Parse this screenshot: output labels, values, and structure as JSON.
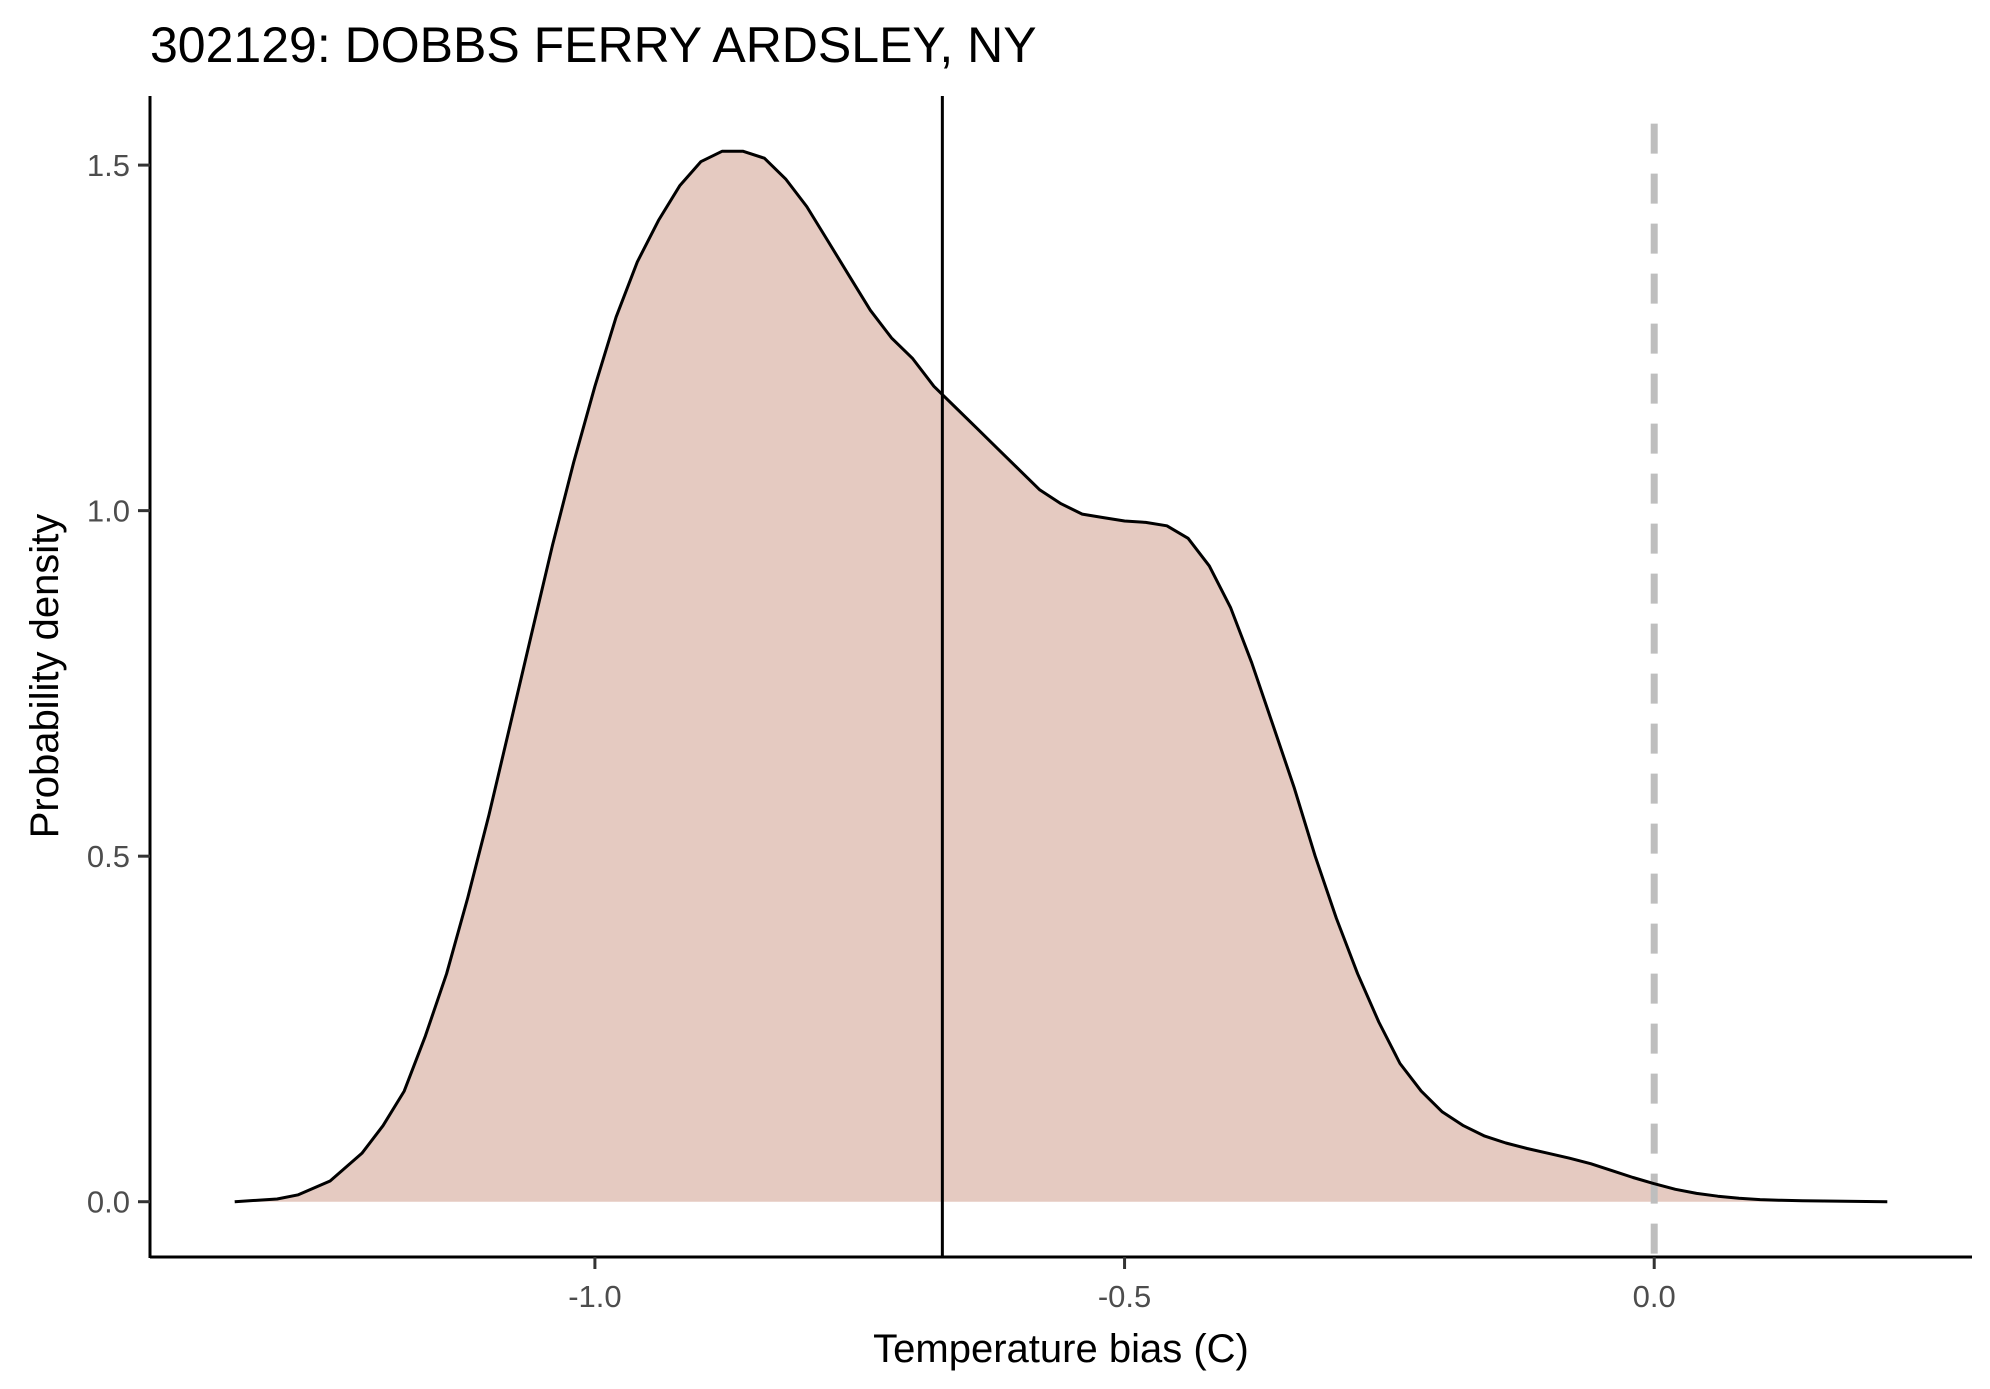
{
  "chart_data": {
    "type": "area",
    "title": "302129: DOBBS FERRY ARDSLEY, NY",
    "xlabel": "Temperature bias (C)",
    "ylabel": "Probability density",
    "xlim": [
      -1.42,
      0.3
    ],
    "ylim": [
      -0.08,
      1.6
    ],
    "x_ticks": [
      -1.0,
      -0.5,
      0.0
    ],
    "x_tick_labels": [
      "-1.0",
      "-0.5",
      "0.0"
    ],
    "y_ticks": [
      0.0,
      0.5,
      1.0,
      1.5
    ],
    "y_tick_labels": [
      "0.0",
      "0.5",
      "1.0",
      "1.5"
    ],
    "grid": false,
    "legend": "none",
    "fill_color": "#e5cac1",
    "line_color": "#000000",
    "reference_lines": [
      {
        "name": "mean",
        "x": -0.672,
        "style": "solid",
        "color": "#000000"
      },
      {
        "name": "zero",
        "x": 0.0,
        "style": "dashed",
        "color": "#bebebe"
      }
    ],
    "density": {
      "x": [
        -1.34,
        -1.3,
        -1.28,
        -1.25,
        -1.22,
        -1.2,
        -1.18,
        -1.16,
        -1.14,
        -1.12,
        -1.1,
        -1.08,
        -1.06,
        -1.04,
        -1.02,
        -1.0,
        -0.98,
        -0.96,
        -0.94,
        -0.92,
        -0.9,
        -0.88,
        -0.86,
        -0.84,
        -0.82,
        -0.8,
        -0.78,
        -0.76,
        -0.74,
        -0.72,
        -0.7,
        -0.68,
        -0.66,
        -0.64,
        -0.62,
        -0.6,
        -0.58,
        -0.56,
        -0.54,
        -0.52,
        -0.5,
        -0.48,
        -0.46,
        -0.44,
        -0.42,
        -0.4,
        -0.38,
        -0.36,
        -0.34,
        -0.32,
        -0.3,
        -0.28,
        -0.26,
        -0.24,
        -0.22,
        -0.2,
        -0.18,
        -0.16,
        -0.14,
        -0.12,
        -0.1,
        -0.08,
        -0.06,
        -0.04,
        -0.02,
        0.0,
        0.02,
        0.04,
        0.06,
        0.08,
        0.1,
        0.12,
        0.14,
        0.16,
        0.18,
        0.22
      ],
      "y": [
        0.0,
        0.004,
        0.01,
        0.03,
        0.07,
        0.11,
        0.16,
        0.24,
        0.33,
        0.44,
        0.56,
        0.69,
        0.82,
        0.95,
        1.07,
        1.18,
        1.28,
        1.36,
        1.42,
        1.47,
        1.505,
        1.52,
        1.52,
        1.51,
        1.48,
        1.44,
        1.39,
        1.34,
        1.29,
        1.25,
        1.22,
        1.18,
        1.15,
        1.12,
        1.09,
        1.06,
        1.03,
        1.01,
        0.995,
        0.99,
        0.985,
        0.983,
        0.978,
        0.96,
        0.92,
        0.86,
        0.78,
        0.69,
        0.6,
        0.5,
        0.41,
        0.33,
        0.26,
        0.2,
        0.16,
        0.13,
        0.11,
        0.095,
        0.085,
        0.077,
        0.07,
        0.063,
        0.055,
        0.045,
        0.035,
        0.026,
        0.018,
        0.012,
        0.008,
        0.005,
        0.003,
        0.002,
        0.0015,
        0.001,
        0.0007,
        0.0
      ]
    }
  }
}
